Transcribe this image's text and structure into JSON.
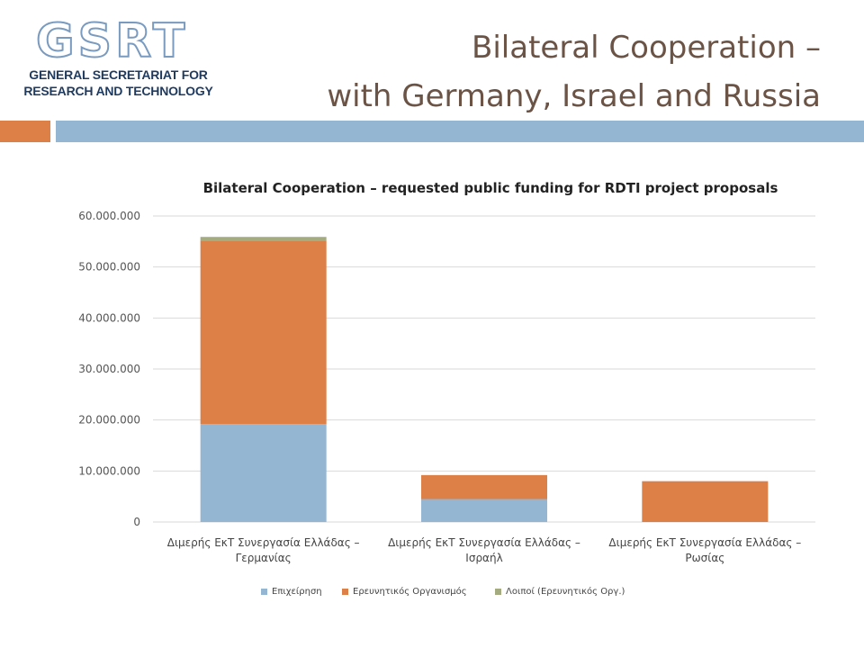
{
  "header": {
    "logo_mark": "GSRT",
    "logo_line1": "GENERAL SECRETARIAT FOR",
    "logo_line2": "RESEARCH AND TECHNOLOGY",
    "title_line1": "Bilateral Cooperation –",
    "title_line2": "with Germany, Israel and Russia"
  },
  "colors": {
    "accent": "#dd8047",
    "band": "#94b6d2",
    "series1": "#94b6d2",
    "series2": "#dd8047",
    "series3": "#a5ab81"
  },
  "chart_data": {
    "type": "bar",
    "stacked": true,
    "title": "Bilateral Cooperation  – requested public funding for RDTI project proposals",
    "categories": [
      [
        "Διμερής ΕκΤ Συνεργασία Ελλάδας –",
        "Γερμανίας"
      ],
      [
        "Διμερής ΕκΤ Συνεργασία Ελλάδας –",
        "Ισραήλ"
      ],
      [
        "Διμερής ΕκΤ Συνεργασία Ελλάδας –",
        "Ρωσίας"
      ]
    ],
    "series": [
      {
        "name": "Επιχείρηση",
        "values": [
          19200000,
          4500000,
          0
        ]
      },
      {
        "name": "Ερευνητικός Οργανισμός",
        "values": [
          36000000,
          4700000,
          8000000
        ]
      },
      {
        "name": "Λοιποί (Ερευνητικός Οργ.)",
        "values": [
          700000,
          0,
          0
        ]
      }
    ],
    "ylim": [
      0,
      60000000
    ],
    "yticks": [
      "0",
      "10.000.000",
      "20.000.000",
      "30.000.000",
      "40.000.000",
      "50.000.000",
      "60.000.000"
    ],
    "grid": true,
    "legend_position": "bottom"
  }
}
